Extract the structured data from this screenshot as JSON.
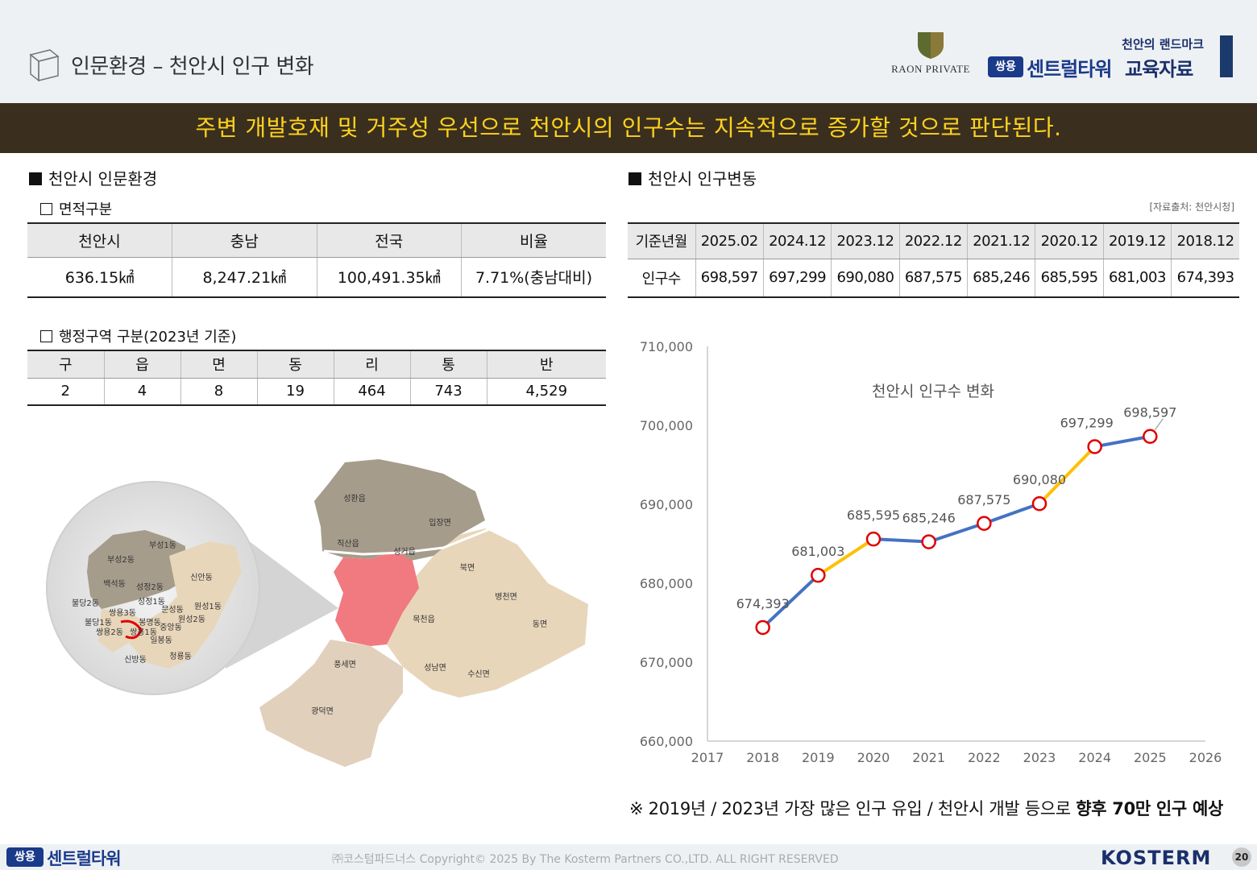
{
  "header": {
    "title": "인문환경 – 천안시 인구 변화",
    "raon_label": "RAON PRIVATE",
    "tagline": "천안의 랜드마크",
    "brand_badge": "쌍용",
    "brand_name": "센트럴타워",
    "brand_suffix": "교육자료"
  },
  "banner": {
    "text": "주변 개발호재 및 거주성 우선으로 천안시의 인구수는 지속적으로 증가할 것으로 판단된다."
  },
  "left": {
    "section_title": "천안시 인문환경",
    "area": {
      "subtitle": "면적구분",
      "headers": [
        "천안시",
        "충남",
        "전국",
        "비율"
      ],
      "values": [
        "636.15㎢",
        "8,247.21㎢",
        "100,491.35㎢",
        "7.71%(충남대비)"
      ]
    },
    "admin": {
      "subtitle": "행정구역 구분(2023년 기준)",
      "headers": [
        "구",
        "읍",
        "면",
        "동",
        "리",
        "통",
        "반"
      ],
      "values": [
        "2",
        "4",
        "8",
        "19",
        "464",
        "743",
        "4,529"
      ]
    },
    "map": {
      "labels": {
        "seonghwan": "성환읍",
        "ipjang": "입장면",
        "jiksan": "직산읍",
        "seonggeo": "성거읍",
        "buk": "북면",
        "byeongcheon": "병천면",
        "dong": "동면",
        "mokcheon": "목천읍",
        "pungse": "풍세면",
        "seongnam": "성남면",
        "susin": "수신면",
        "gwangdeok": "광덕면",
        "busung1": "부성1동",
        "busung2": "부성2동",
        "sinan": "신안동",
        "baekseok": "백석동",
        "seongjeong2": "성정2동",
        "seongjeong1": "성정1동",
        "buldang2": "불당2동",
        "ssangyong3": "쌍용3동",
        "munseong": "문성동",
        "wonseong1": "원성1동",
        "wonseong2": "원성2동",
        "bongmyeong": "봉명동",
        "buldang1": "불당1동",
        "ssangyong2": "쌍용2동",
        "ssangyong1": "쌍용1동",
        "jungang": "중앙동",
        "ilbong": "일봉동",
        "sinbang": "신방동",
        "cheongryong": "청룡동"
      }
    }
  },
  "right": {
    "section_title": "천안시 인구변동",
    "source": "[자료출처: 천안시청]",
    "table": {
      "row_header_1": "기준년월",
      "row_header_2": "인구수",
      "months": [
        "2025.02",
        "2024.12",
        "2023.12",
        "2022.12",
        "2021.12",
        "2020.12",
        "2019.12",
        "2018.12"
      ],
      "populations": [
        "698,597",
        "697,299",
        "690,080",
        "687,575",
        "685,246",
        "685,595",
        "681,003",
        "674,393"
      ]
    }
  },
  "chart_data": {
    "type": "line",
    "title": "천안시 인구수 변화",
    "x": [
      2018,
      2019,
      2020,
      2021,
      2022,
      2023,
      2024,
      2025
    ],
    "series": [
      {
        "values": [
          674393,
          681003,
          685595,
          685246,
          687575,
          690080,
          697299,
          698597
        ]
      }
    ],
    "data_labels": [
      "674,393",
      "681,003",
      "685,595",
      "685,246",
      "687,575",
      "690,080",
      "697,299",
      "698,597"
    ],
    "xlim": [
      2017,
      2026
    ],
    "ylim": [
      660000,
      710000
    ],
    "x_ticks": [
      "2017",
      "2018",
      "2019",
      "2020",
      "2021",
      "2022",
      "2023",
      "2024",
      "2025",
      "2026"
    ],
    "y_ticks": [
      "660,000",
      "670,000",
      "680,000",
      "690,000",
      "700,000",
      "710,000"
    ],
    "grid": false,
    "colors": {
      "line": "#4472c4",
      "highlight": "#ffc000",
      "marker": "#e00000"
    },
    "highlight_segments": [
      [
        2019,
        2020
      ],
      [
        2023,
        2024
      ]
    ]
  },
  "footnote": {
    "text": "※ 2019년 / 2023년 가장 많은 인구 유입 / 천안시 개발 등으로 ",
    "emphasis": "향후 70만 인구 예상"
  },
  "footer": {
    "badge": "쌍용",
    "brand": "센트럴타워",
    "copyright": "㈜코스텀파드너스 Copyright© 2025 By The Kosterm Partners CO.,LTD. ALL RIGHT RESERVED",
    "logo": "KOSTERM",
    "page": "20"
  },
  "colors": {
    "banner_bg": "#3a2f1e",
    "banner_text": "#ffd21f",
    "brand_blue": "#1a3a8a",
    "map_north": "#a69c8c",
    "map_east": "#e8d6bb",
    "map_center": "#f07a80"
  }
}
